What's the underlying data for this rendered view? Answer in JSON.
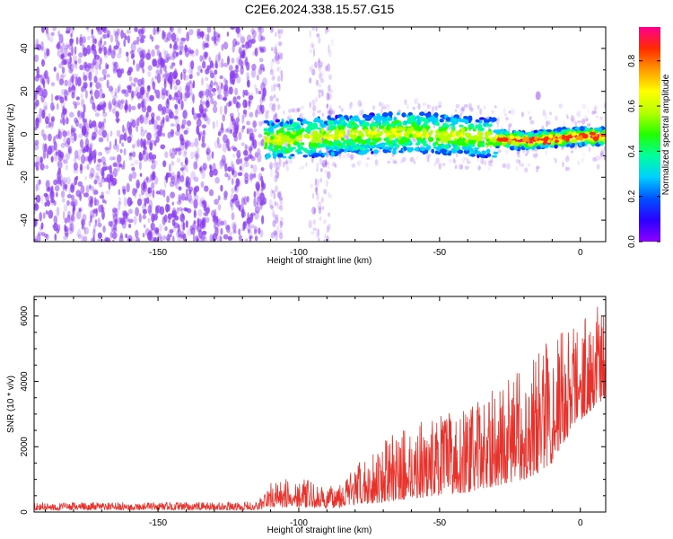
{
  "title": "C2E6.2024.338.15.57.G15",
  "colors": {
    "snr_line": "#e8312a",
    "spectrogram_noise": "#8a3df0",
    "axis": "#000000"
  },
  "colormap": [
    "#8f00ff",
    "#2a00ff",
    "#0050ff",
    "#00d0ff",
    "#00ff9c",
    "#22ff00",
    "#b6ff00",
    "#ffff00",
    "#ff9a00",
    "#ff2a00",
    "#ff0090"
  ],
  "chart_data": [
    {
      "type": "heatmap",
      "title": "",
      "xlabel": "Height of straight line (km)",
      "ylabel": "Frequency (Hz)",
      "xlim": [
        -194,
        9
      ],
      "ylim": [
        -50,
        50
      ],
      "xticks": [
        -150,
        -100,
        -50,
        0
      ],
      "yticks": [
        -40,
        -20,
        0,
        20,
        40
      ],
      "xtick_labels": [
        "-150",
        "-100",
        "-50",
        "0"
      ],
      "ytick_labels": [
        "-40",
        "-20",
        "0",
        "20",
        "40"
      ],
      "grid": false,
      "description_features": {
        "noise_region_x": [
          -194,
          -112
        ],
        "sparse_columns_x": [
          [
            -110,
            -106
          ],
          [
            -96,
            -88
          ]
        ],
        "signal_band_center_hz": [
          {
            "x": -112,
            "f": -3
          },
          {
            "x": -100,
            "f": -2
          },
          {
            "x": -80,
            "f": 0
          },
          {
            "x": -60,
            "f": 1
          },
          {
            "x": -40,
            "f": -1
          },
          {
            "x": -20,
            "f": -3
          },
          {
            "x": -10,
            "f": -2
          },
          {
            "x": 0,
            "f": -1
          },
          {
            "x": 9,
            "f": -1
          }
        ],
        "isolated_blob": {
          "x": -15,
          "f": 18
        }
      },
      "colorbar": {
        "label": "Normalized spectral amplitude",
        "range": [
          0,
          0.95
        ],
        "ticks": [
          0.0,
          0.2,
          0.4,
          0.6,
          0.8
        ],
        "tick_labels": [
          "0.0",
          "0.2",
          "0.4",
          "0.6",
          "0.8"
        ]
      }
    },
    {
      "type": "line",
      "title": "",
      "xlabel": "Height of straight line (km)",
      "ylabel": "SNR (10 * v/v)",
      "xlim": [
        -194,
        9
      ],
      "ylim": [
        0,
        6600
      ],
      "xticks": [
        -150,
        -100,
        -50,
        0
      ],
      "yticks": [
        0,
        2000,
        4000,
        6000
      ],
      "xtick_labels": [
        "-150",
        "-100",
        "-50",
        "0"
      ],
      "ytick_labels": [
        "0",
        "2000",
        "4000",
        "6000"
      ],
      "grid": false,
      "series": [
        {
          "name": "",
          "envelope": [
            {
              "x": -194,
              "low": 60,
              "high": 300
            },
            {
              "x": -150,
              "low": 60,
              "high": 300
            },
            {
              "x": -115,
              "low": 60,
              "high": 320
            },
            {
              "x": -110,
              "low": 150,
              "high": 900
            },
            {
              "x": -100,
              "low": 150,
              "high": 1100
            },
            {
              "x": -90,
              "low": 100,
              "high": 700
            },
            {
              "x": -80,
              "low": 200,
              "high": 1400
            },
            {
              "x": -70,
              "low": 300,
              "high": 2200
            },
            {
              "x": -60,
              "low": 400,
              "high": 2700
            },
            {
              "x": -50,
              "low": 500,
              "high": 3000
            },
            {
              "x": -40,
              "low": 600,
              "high": 3200
            },
            {
              "x": -30,
              "low": 800,
              "high": 3800
            },
            {
              "x": -20,
              "low": 1000,
              "high": 4500
            },
            {
              "x": -15,
              "low": 1200,
              "high": 5000
            },
            {
              "x": -10,
              "low": 1500,
              "high": 5600
            },
            {
              "x": -5,
              "low": 2200,
              "high": 5800
            },
            {
              "x": 0,
              "low": 2800,
              "high": 6000
            },
            {
              "x": 5,
              "low": 3200,
              "high": 6300
            },
            {
              "x": 9,
              "low": 3500,
              "high": 6600
            }
          ]
        }
      ]
    }
  ]
}
